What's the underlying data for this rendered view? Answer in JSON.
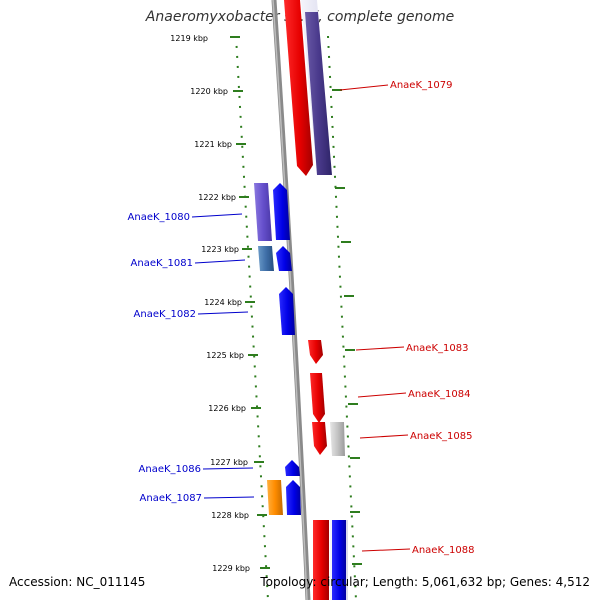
{
  "title": "Anaeromyxobacter sp. K, complete genome",
  "ticks": [
    "1219 kbp",
    "1220 kbp",
    "1221 kbp",
    "1222 kbp",
    "1223 kbp",
    "1224 kbp",
    "1225 kbp",
    "1226 kbp",
    "1227 kbp",
    "1228 kbp",
    "1229 kbp"
  ],
  "genes": [
    {
      "id": "AnaeK_1079",
      "strand": "right",
      "color": "#cc0000"
    },
    {
      "id": "AnaeK_1080",
      "strand": "left",
      "color": "#0000cc"
    },
    {
      "id": "AnaeK_1081",
      "strand": "left",
      "color": "#0000cc"
    },
    {
      "id": "AnaeK_1082",
      "strand": "left",
      "color": "#0000cc"
    },
    {
      "id": "AnaeK_1083",
      "strand": "right",
      "color": "#cc0000"
    },
    {
      "id": "AnaeK_1084",
      "strand": "right",
      "color": "#cc0000"
    },
    {
      "id": "AnaeK_1085",
      "strand": "right",
      "color": "#cc0000"
    },
    {
      "id": "AnaeK_1086",
      "strand": "left",
      "color": "#0000cc"
    },
    {
      "id": "AnaeK_1087",
      "strand": "left",
      "color": "#0000cc"
    },
    {
      "id": "AnaeK_1088",
      "strand": "right",
      "color": "#cc0000"
    }
  ],
  "footer": {
    "accession": "Accession: NC_011145",
    "summary": "Topology: circular; Length: 5,061,632 bp; Genes: 4,512"
  },
  "colors": {
    "forward": "#ff0000",
    "reverse": "#0000ff",
    "tick": "#2e7d1e",
    "backbone": "#888888"
  }
}
